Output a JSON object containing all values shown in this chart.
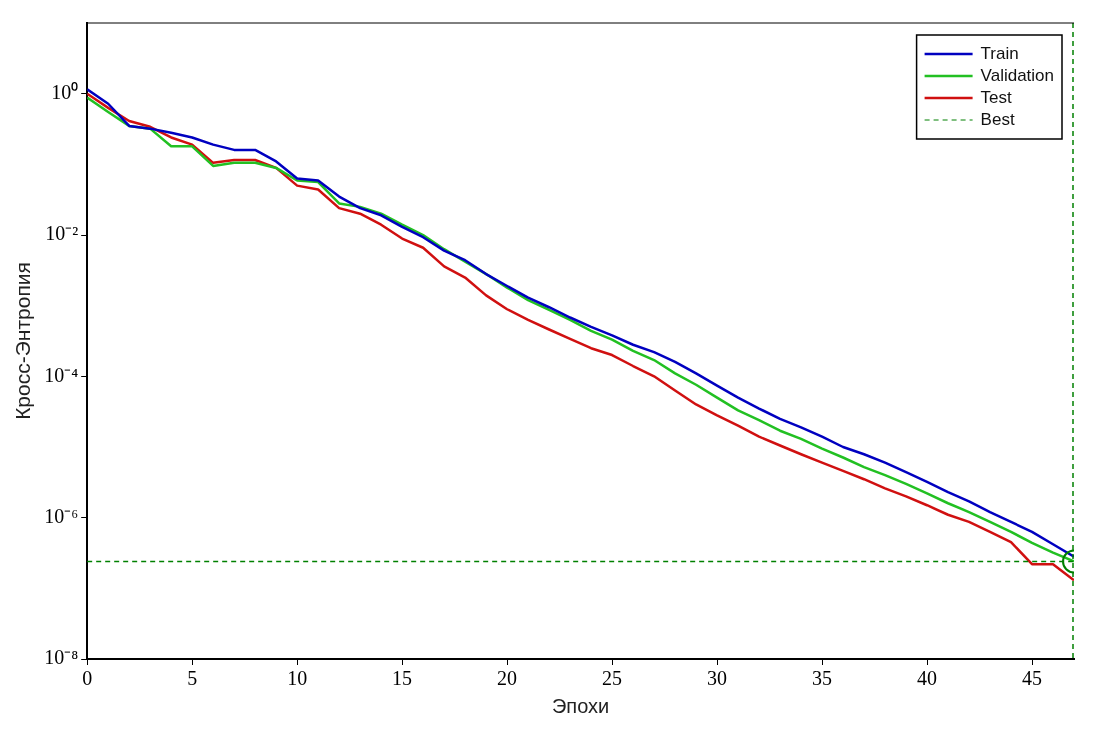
{
  "chart_data": {
    "type": "line",
    "xlabel": "Эпохи",
    "ylabel": "Кросс-Энтропия",
    "x": [
      0,
      1,
      2,
      3,
      4,
      5,
      6,
      7,
      8,
      9,
      10,
      11,
      12,
      13,
      14,
      15,
      16,
      17,
      18,
      19,
      20,
      21,
      22,
      23,
      24,
      25,
      26,
      27,
      28,
      29,
      30,
      31,
      32,
      33,
      34,
      35,
      36,
      37,
      38,
      39,
      40,
      41,
      42,
      43,
      44,
      45,
      46,
      47
    ],
    "series": [
      {
        "name": "Train",
        "color": "#0000c0",
        "values": [
          1.15,
          0.72,
          0.35,
          0.32,
          0.28,
          0.24,
          0.19,
          0.16,
          0.16,
          0.11,
          0.063,
          0.059,
          0.035,
          0.024,
          0.019,
          0.013,
          0.0093,
          0.006,
          0.0044,
          0.0028,
          0.0019,
          0.0013,
          0.00095,
          0.00068,
          0.0005,
          0.00038,
          0.00028,
          0.00022,
          0.00016,
          0.00011,
          7.4e-05,
          5e-05,
          3.5e-05,
          2.5e-05,
          1.9e-05,
          1.4e-05,
          1e-05,
          7.9e-06,
          6e-06,
          4.4e-06,
          3.2e-06,
          2.3e-06,
          1.7e-06,
          1.2e-06,
          8.7e-07,
          6.3e-07,
          4.2e-07,
          2.8e-07
        ]
      },
      {
        "name": "Validation",
        "color": "#22c022",
        "values": [
          0.88,
          0.55,
          0.35,
          0.32,
          0.18,
          0.18,
          0.095,
          0.105,
          0.105,
          0.089,
          0.059,
          0.056,
          0.028,
          0.025,
          0.02,
          0.014,
          0.01,
          0.0063,
          0.0042,
          0.0028,
          0.0018,
          0.0012,
          0.00087,
          0.00063,
          0.00044,
          0.00033,
          0.00023,
          0.00017,
          0.00011,
          7.6e-05,
          5e-05,
          3.3e-05,
          2.4e-05,
          1.7e-05,
          1.3e-05,
          9.5e-06,
          7.1e-06,
          5.2e-06,
          4e-06,
          3e-06,
          2.2e-06,
          1.6e-06,
          1.2e-06,
          8.7e-07,
          6.3e-07,
          4.4e-07,
          3.2e-07,
          2.4e-07
        ]
      },
      {
        "name": "Test",
        "color": "#d01010",
        "values": [
          1,
          0.63,
          0.41,
          0.34,
          0.24,
          0.19,
          0.105,
          0.115,
          0.115,
          0.089,
          0.05,
          0.044,
          0.024,
          0.02,
          0.014,
          0.0089,
          0.0066,
          0.0036,
          0.0025,
          0.0014,
          0.00089,
          0.00063,
          0.00046,
          0.00034,
          0.00025,
          0.0002,
          0.00014,
          0.0001,
          6.3e-05,
          4e-05,
          2.8e-05,
          2e-05,
          1.4e-05,
          1.05e-05,
          7.9e-06,
          6e-06,
          4.6e-06,
          3.5e-06,
          2.6e-06,
          2e-06,
          1.5e-06,
          1.1e-06,
          8.7e-07,
          6.3e-07,
          4.5e-07,
          2.2e-07,
          2.2e-07,
          1.3e-07
        ]
      },
      {
        "type": "scatter",
        "marker": "circle",
        "color": "#008000",
        "x": [
          47
        ],
        "values": [
          2.4e-07
        ]
      }
    ],
    "ref_lines": [
      {
        "axis": "y",
        "value": 2.4e-07,
        "label": "Best",
        "color": "#008000",
        "line_style": "dashed"
      },
      {
        "axis": "x",
        "value": 47,
        "color": "#008000",
        "line_style": "dashed"
      }
    ],
    "xlim": [
      0,
      47
    ],
    "xticks": [
      0,
      5,
      10,
      15,
      20,
      25,
      30,
      35,
      40,
      45
    ],
    "ylim": [
      1e-08,
      10
    ],
    "log": "y",
    "yticks": [
      {
        "value": 1e-08,
        "label": "10⁻⁸"
      },
      {
        "value": 1e-06,
        "label": "10⁻⁶"
      },
      {
        "value": 0.0001,
        "label": "10⁻⁴"
      },
      {
        "value": 0.01,
        "label": "10⁻²"
      },
      {
        "value": 1,
        "label": "10⁰"
      }
    ],
    "grid": false,
    "legend": "top right",
    "marker": "none",
    "line_style": "solid"
  }
}
